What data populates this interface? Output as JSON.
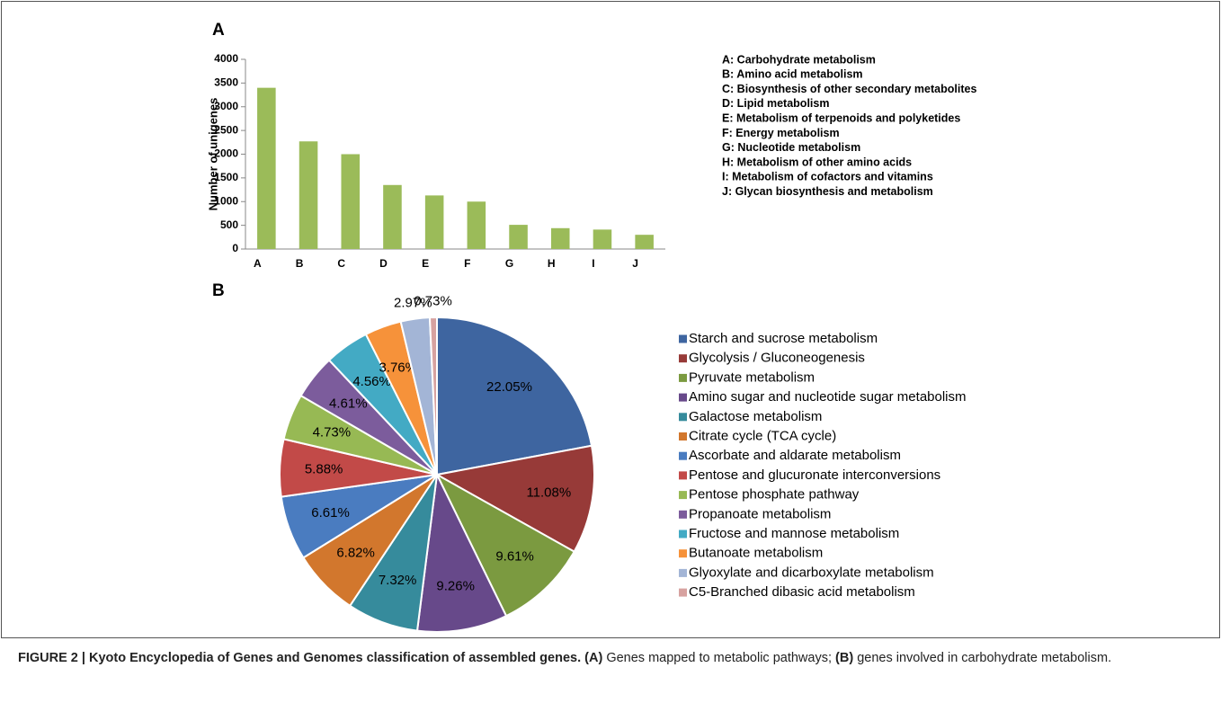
{
  "chart_data": [
    {
      "type": "bar",
      "panel_label": "A",
      "ylabel": "Number of unigenes",
      "categories": [
        "A",
        "B",
        "C",
        "D",
        "E",
        "F",
        "G",
        "H",
        "I",
        "J"
      ],
      "values": [
        3400,
        2270,
        2000,
        1350,
        1130,
        1000,
        510,
        440,
        410,
        300
      ],
      "color": "#9bbb59",
      "ylim": [
        0,
        4000
      ],
      "yticks": [
        0,
        500,
        1000,
        1500,
        2000,
        2500,
        3000,
        3500,
        4000
      ],
      "grid": false,
      "annotations": [
        "A: Carbohydrate metabolism",
        "B: Amino acid metabolism",
        "C: Biosynthesis of other secondary metabolites",
        "D: Lipid metabolism",
        "E: Metabolism of terpenoids and polyketides",
        "F: Energy metabolism",
        "G: Nucleotide metabolism",
        "H: Metabolism of other amino acids",
        "I: Metabolism of cofactors and vitamins",
        "J: Glycan biosynthesis and metabolism"
      ]
    },
    {
      "type": "pie",
      "panel_label": "B",
      "categories": [
        "Starch and sucrose metabolism",
        "Glycolysis / Gluconeogenesis",
        "Pyruvate metabolism",
        "Amino sugar and nucleotide sugar metabolism",
        "Galactose metabolism",
        "Citrate cycle (TCA cycle)",
        "Ascorbate and aldarate metabolism",
        "Pentose and glucuronate interconversions",
        "Pentose phosphate pathway",
        "Propanoate metabolism",
        "Fructose and mannose metabolism",
        "Butanoate metabolism",
        "Glyoxylate and dicarboxylate metabolism",
        "C5-Branched dibasic acid metabolism"
      ],
      "values": [
        22.05,
        11.08,
        9.61,
        9.26,
        7.32,
        6.82,
        6.61,
        5.88,
        4.73,
        4.61,
        4.56,
        3.76,
        2.97,
        0.73
      ],
      "value_labels": [
        "22.05%",
        "11.08%",
        "9.61%",
        "9.26%",
        "7.32%",
        "6.82%",
        "6.61%",
        "5.88%",
        "4.73%",
        "4.61%",
        "4.56%",
        "3.76%",
        "2.97%",
        "0.73%"
      ],
      "colors": [
        "#3e65a0",
        "#973a38",
        "#7b9a40",
        "#67498a",
        "#368b9c",
        "#d2772d",
        "#4a7cc0",
        "#c24a48",
        "#97b954",
        "#7c5c9c",
        "#43aac4",
        "#f6923a",
        "#a3b5d6",
        "#d7a2a0"
      ],
      "legend": "right"
    }
  ],
  "caption": {
    "title": "FIGURE 2 | Kyoto Encyclopedia of Genes and Genomes classification of assembled genes.",
    "a_marker": "(A)",
    "a_text": "Genes mapped to metabolic pathways;",
    "b_marker": "(B)",
    "b_text": "genes involved in carbohydrate metabolism."
  }
}
